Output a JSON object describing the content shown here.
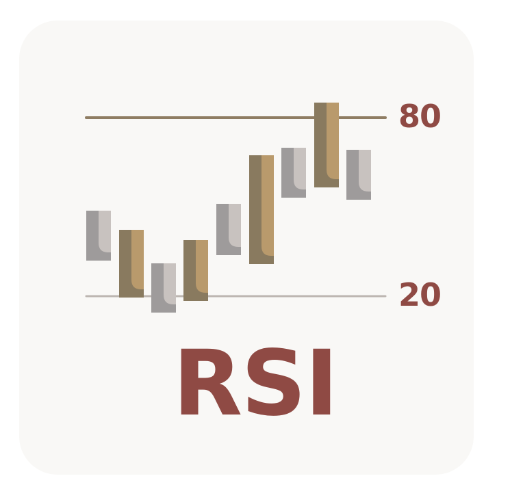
{
  "icon": {
    "name": "rsi-indicator-icon",
    "title": "RSI",
    "levels": {
      "upper": "80",
      "lower": "20"
    },
    "colors": {
      "background": "#f9f8f6",
      "text": "#8f4a44",
      "upper_line": "#8f7d63",
      "lower_line": "#bdb6b1",
      "bullish_dark": "#897a5f",
      "bullish_light": "#b99a6c",
      "bearish_dark": "#9e9b9b",
      "bearish_light": "#c8c2bf"
    },
    "candles": [
      {
        "type": "bearish"
      },
      {
        "type": "bullish"
      },
      {
        "type": "bearish"
      },
      {
        "type": "bullish"
      },
      {
        "type": "bearish"
      },
      {
        "type": "bullish"
      },
      {
        "type": "bearish"
      },
      {
        "type": "bullish"
      },
      {
        "type": "bearish"
      }
    ]
  }
}
